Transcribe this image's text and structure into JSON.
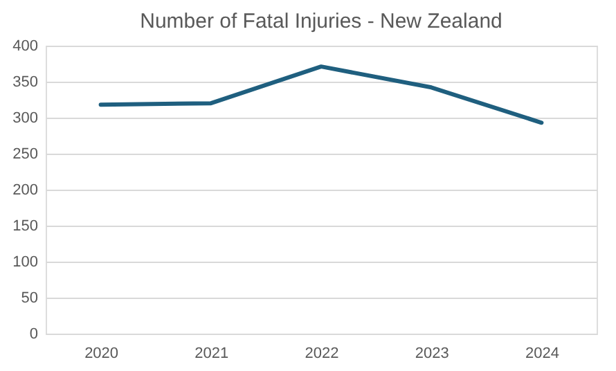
{
  "chart_data": {
    "type": "line",
    "title": "Number of Fatal Injuries - New Zealand",
    "categories": [
      "2020",
      "2021",
      "2022",
      "2023",
      "2024"
    ],
    "series": [
      {
        "color": "#1f5f7f",
        "values": [
          318,
          320,
          371,
          342,
          293
        ]
      }
    ],
    "ylim": [
      0,
      400
    ],
    "yticks": [
      0,
      50,
      100,
      150,
      200,
      250,
      300,
      350,
      400
    ],
    "grid": "y",
    "legend": false,
    "marker": "none",
    "line_style": "solid"
  }
}
